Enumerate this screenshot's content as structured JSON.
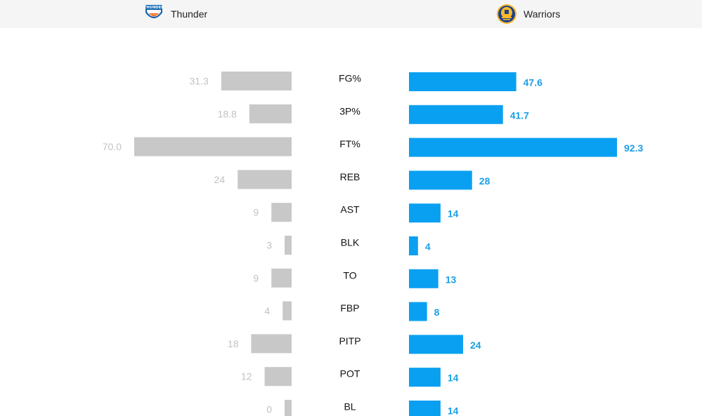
{
  "teams": {
    "left": {
      "name": "Thunder",
      "logo_icon": "thunder-logo-icon",
      "color": "#c8c8c8"
    },
    "right": {
      "name": "Warriors",
      "logo_icon": "warriors-logo-icon",
      "color": "#0aa0f2"
    }
  },
  "colors": {
    "left_bar": "#c8c8c8",
    "right_bar": "#0aa0f2",
    "left_value": "#c2c2c2",
    "right_value": "#1a9fe6",
    "header_bg": "#f5f5f5"
  },
  "chart_data": {
    "type": "bar",
    "categories": [
      "FG%",
      "3P%",
      "FT%",
      "REB",
      "AST",
      "BLK",
      "TO",
      "FBP",
      "PITP",
      "POT",
      "BL"
    ],
    "series": [
      {
        "name": "Thunder",
        "values": [
          "31.3",
          "18.8",
          "70.0",
          "24",
          "9",
          "3",
          "9",
          "4",
          "18",
          "12",
          "0"
        ]
      },
      {
        "name": "Warriors",
        "values": [
          "47.6",
          "41.7",
          "92.3",
          "28",
          "14",
          "4",
          "13",
          "8",
          "24",
          "14",
          "14"
        ]
      }
    ]
  }
}
